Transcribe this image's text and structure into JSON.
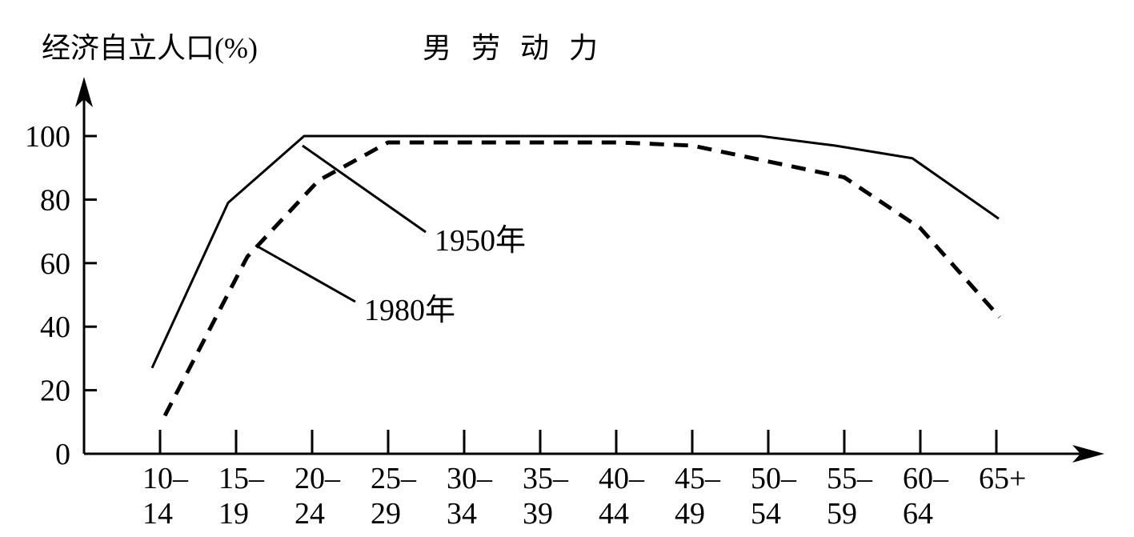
{
  "chart_data": {
    "type": "line",
    "title": "男 劳 动 力",
    "ylabel": "经济自立人口(%)",
    "xlabel": "",
    "ylim": [
      0,
      100
    ],
    "yticks": [
      0,
      20,
      40,
      60,
      80,
      100
    ],
    "categories": [
      {
        "top": "10–",
        "bottom": "14"
      },
      {
        "top": "15–",
        "bottom": "19"
      },
      {
        "top": "20–",
        "bottom": "24"
      },
      {
        "top": "25–",
        "bottom": "29"
      },
      {
        "top": "30–",
        "bottom": "34"
      },
      {
        "top": "35–",
        "bottom": "39"
      },
      {
        "top": "40–",
        "bottom": "44"
      },
      {
        "top": "45–",
        "bottom": "49"
      },
      {
        "top": "50–",
        "bottom": "54"
      },
      {
        "top": "55–",
        "bottom": "59"
      },
      {
        "top": "60–",
        "bottom": "64"
      },
      {
        "top": "65+",
        "bottom": ""
      }
    ],
    "series": [
      {
        "name": "1950年",
        "style": "solid",
        "color": "#000000",
        "values": [
          27,
          79,
          100,
          100,
          100,
          100,
          100,
          100,
          100,
          97,
          93,
          74
        ]
      },
      {
        "name": "1980年",
        "style": "dashed",
        "color": "#000000",
        "values": [
          12,
          62,
          86,
          98,
          98,
          98,
          98,
          97,
          92,
          87,
          71,
          43
        ]
      }
    ],
    "grid": false,
    "legend": "callout labels with leader lines"
  }
}
